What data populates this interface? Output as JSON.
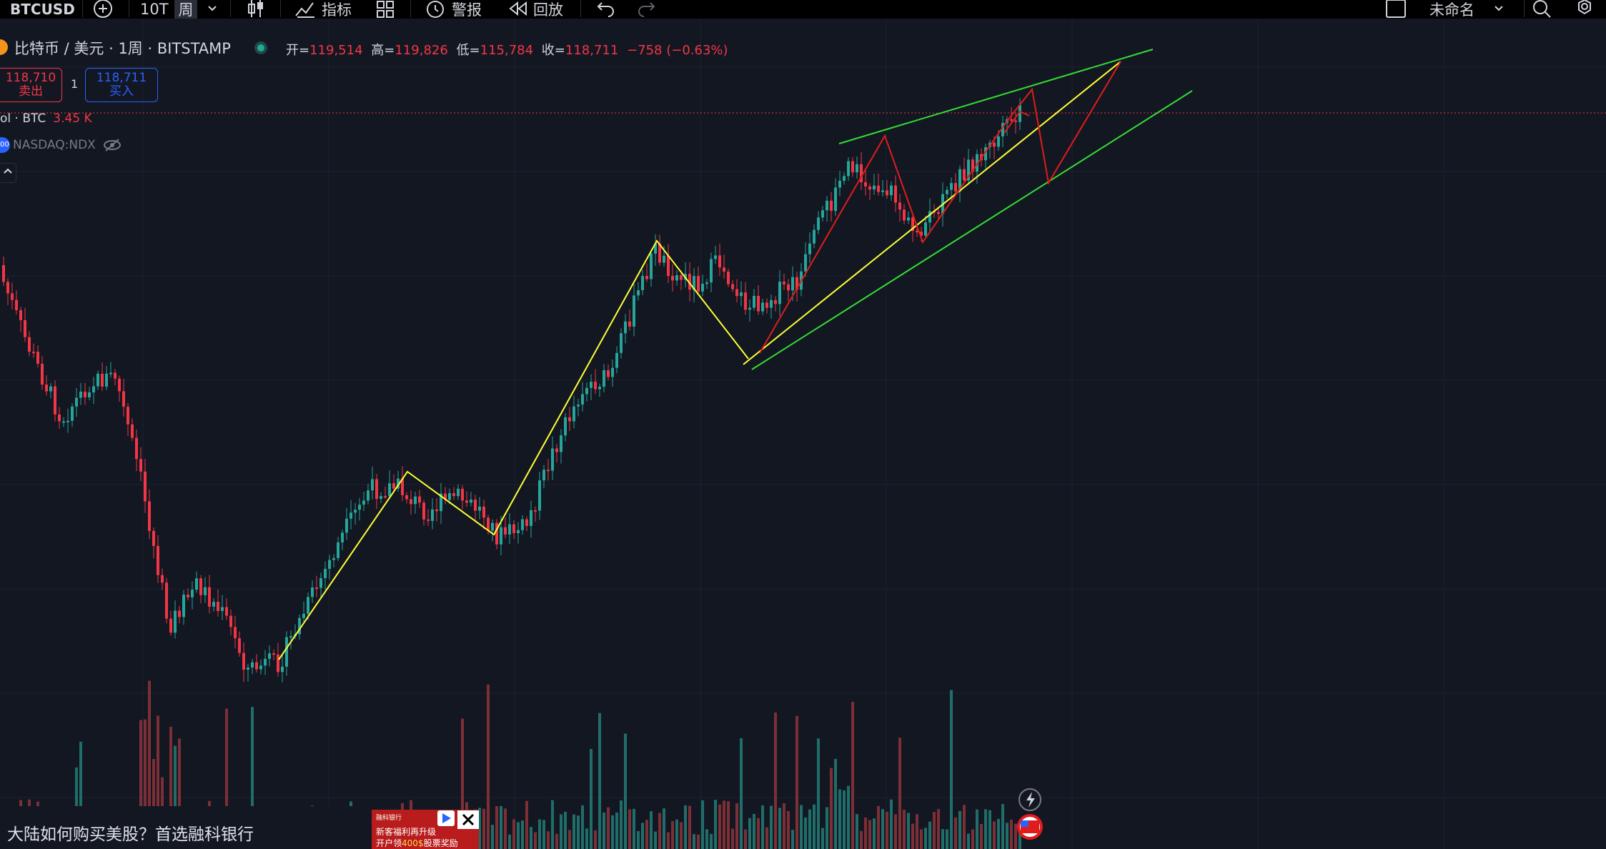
{
  "toolbar": {
    "symbol": "BTCUSD",
    "interval_10t": "10T",
    "interval_week": "周",
    "indicators_label": "指标",
    "alerts_label": "警报",
    "replay_label": "回放",
    "layout_name": "未命名"
  },
  "legend": {
    "title": "比特币 / 美元 · 1周 · BITSTAMP",
    "open_label": "开=",
    "open": "119,514",
    "high_label": "高=",
    "high": "119,826",
    "low_label": "低=",
    "low": "115,784",
    "close_label": "收=",
    "close": "118,711",
    "change": "−758 (−0.63%)"
  },
  "trade": {
    "sell_price": "118,710",
    "sell_label": "卖出",
    "quantity": "1",
    "buy_price": "118,711",
    "buy_label": "买入"
  },
  "volume_study": {
    "label": "ol · BTC",
    "value": "3.45 K"
  },
  "compare_symbol": {
    "badge": "00",
    "label": "NASDAQ:NDX"
  },
  "ad": {
    "text": "大陆如何购买美股？首选融科银行",
    "brand": "融科银行",
    "line1": "新客福利再升级",
    "line2_pre": "开户领",
    "line2_hl": "400$",
    "line2_post": "股票奖励"
  },
  "colors": {
    "up": "#26a69a",
    "down": "#f23645",
    "up_volume": "#1f6e6a",
    "down_volume": "#7d2f36",
    "background": "#131722",
    "wave_lines": "#ffff33",
    "channel_lines": "#33dd33",
    "projection_lines": "#e01c1c"
  }
}
